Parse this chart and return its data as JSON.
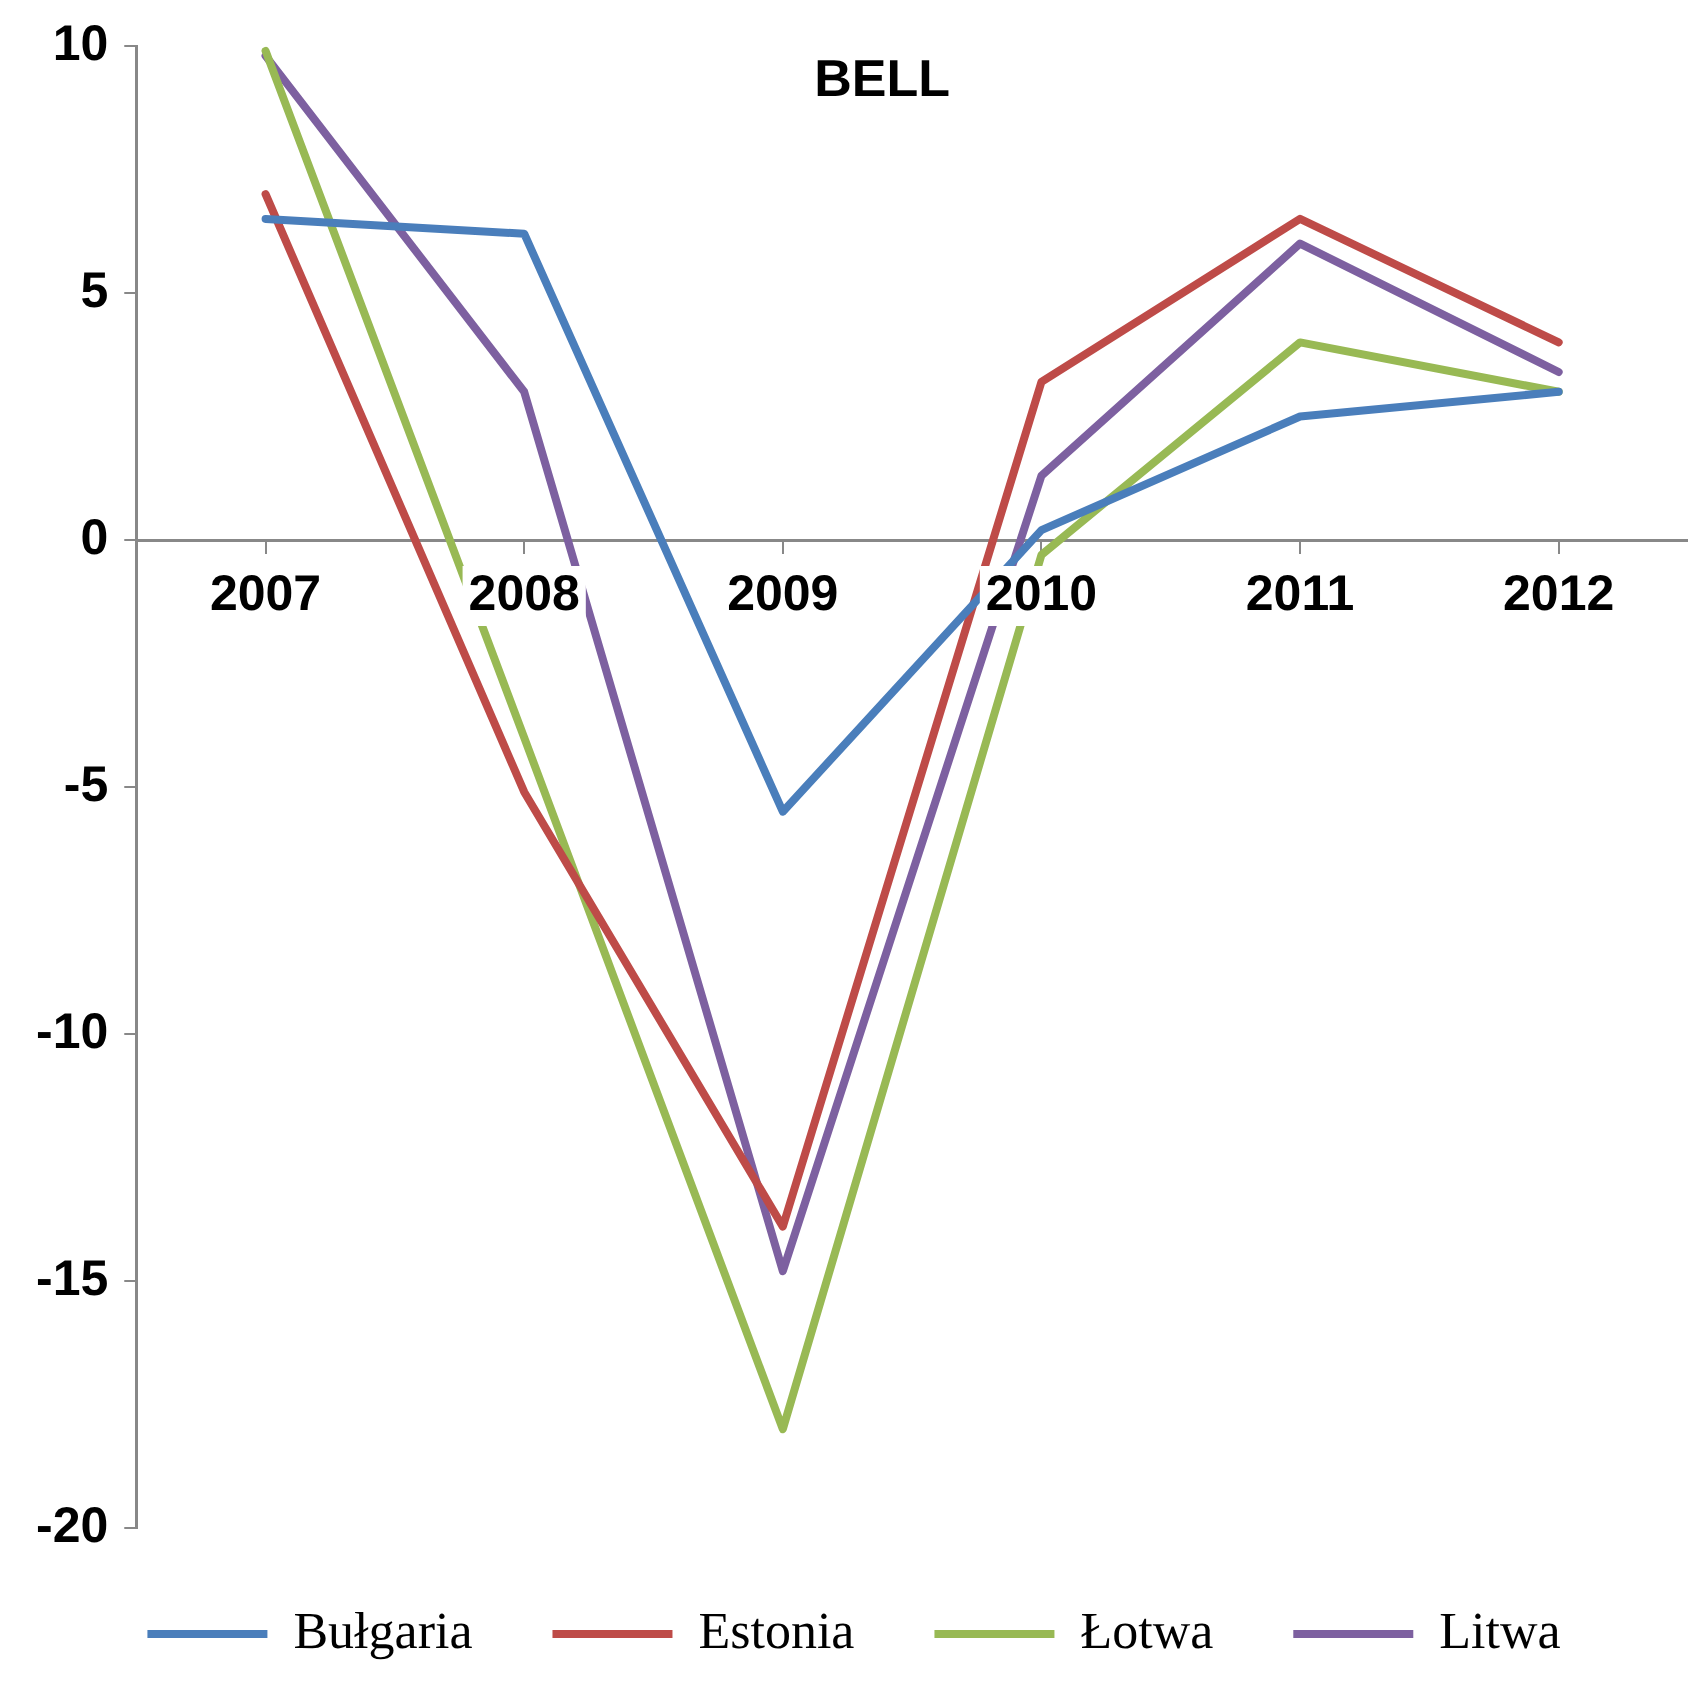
{
  "chart_data": {
    "type": "line",
    "title": "BELL",
    "categories": [
      "2007",
      "2008",
      "2009",
      "2010",
      "2011",
      "2012"
    ],
    "series": [
      {
        "name": "Bułgaria",
        "color": "#4a7ebb",
        "values": [
          6.5,
          6.2,
          -5.5,
          0.2,
          2.5,
          3.0
        ]
      },
      {
        "name": "Estonia",
        "color": "#be4b48",
        "values": [
          7.0,
          -5.1,
          -13.9,
          3.2,
          6.5,
          4.0
        ]
      },
      {
        "name": "Łotwa",
        "color": "#98b954",
        "values": [
          9.9,
          -4.0,
          -18.0,
          -0.3,
          4.0,
          3.0
        ]
      },
      {
        "name": "Litwa",
        "color": "#7d60a0",
        "values": [
          9.8,
          3.0,
          -14.8,
          1.3,
          6.0,
          3.4
        ]
      }
    ],
    "ylim": [
      -20,
      10
    ],
    "yticks": [
      -20,
      -15,
      -10,
      -5,
      0,
      5,
      10
    ],
    "grid": false,
    "legend": "bottom",
    "marker": "none",
    "line_style": "solid"
  }
}
